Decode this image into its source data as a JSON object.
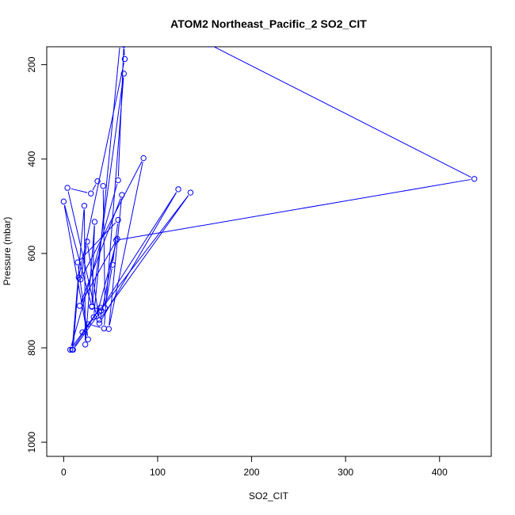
{
  "chart_data": {
    "type": "line",
    "title": "ATOM2 Northeast_Pacific_2 SO2_CIT",
    "xlabel": "SO2_CIT",
    "ylabel": "Pressure (mbar)",
    "xlim": [
      -18,
      455
    ],
    "ylim": [
      1030,
      162
    ],
    "y_axis_inverted": true,
    "x_ticks": [
      0,
      100,
      200,
      300,
      400
    ],
    "x_tick_labels": [
      "0",
      "100",
      "200",
      "300",
      "400"
    ],
    "y_ticks": [
      200,
      400,
      600,
      800,
      1000
    ],
    "y_tick_labels": [
      "200",
      "400",
      "600",
      "800",
      "1000"
    ],
    "grid": false,
    "legend": "none",
    "series": [
      {
        "color": "#0000ff",
        "marker": "open-circle",
        "x": [
          155,
          437,
          56,
          38,
          122,
          38,
          135,
          38,
          25,
          18,
          85,
          48,
          62,
          17,
          57,
          35,
          4,
          29,
          36,
          42,
          44,
          52,
          58,
          15,
          26,
          0,
          30,
          64,
          43,
          26,
          20,
          39,
          9,
          22,
          23,
          33,
          30,
          40,
          10,
          16,
          65,
          64,
          58,
          7,
          32,
          60
        ],
        "y": [
          157,
          442,
          572,
          748,
          464,
          723,
          471,
          741,
          575,
          655,
          398,
          760,
          476,
          711,
          569,
          733,
          461,
          473,
          447,
          457,
          716,
          624,
          529,
          619,
          782,
          490,
          713,
          219,
          759,
          750,
          767,
          715,
          804,
          499,
          793,
          533,
          712,
          721,
          804,
          651,
          188,
          158,
          445,
          804,
          735,
          156
        ]
      }
    ]
  }
}
